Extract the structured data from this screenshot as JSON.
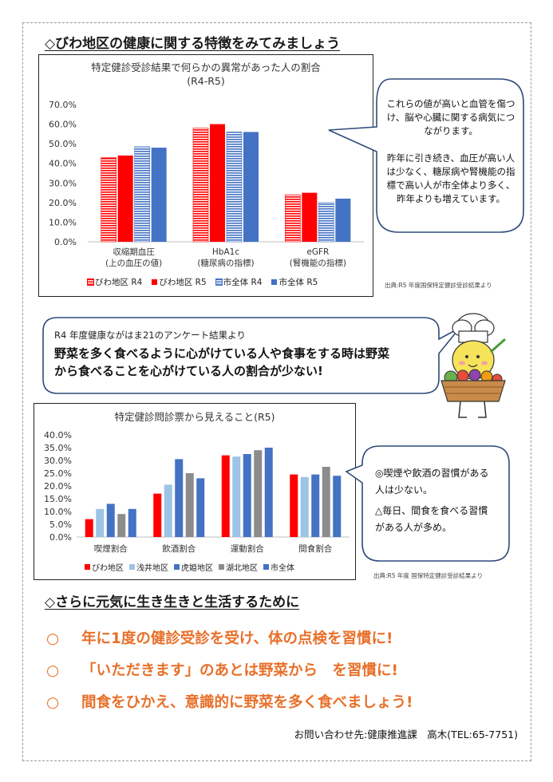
{
  "section1_title": "◇びわ地区の健康に関する特徴をみてみましょう",
  "chart1": {
    "title_line1": "特定健診受診結果で何らかの異常があった人の割合",
    "title_line2": "(R4-R5)",
    "source": "出典:R5 年度国保特定健診受診結果より"
  },
  "callout1": {
    "p1": "これらの値が高いと血管を傷つけ、脳や心臓に関する病気につながります。",
    "p2": "昨年に引き続き、血圧が高い人は少なく、糖尿病や腎機能の指標で高い人が市全体より多く、昨年よりも増えています。"
  },
  "survey": {
    "subtitle": "R4 年度健康ながはま21のアンケート結果より",
    "main": "野菜を多く食べるように心がけている人や食事をする時は野菜から食べることを心がけている人の割合が少ない!"
  },
  "chart2": {
    "title": "特定健診問診票から見えること(R5)",
    "source": "出典:R5 年度 国保特定健診受診結果より"
  },
  "callout2": {
    "line1": "◎喫煙や飲酒の習慣がある人は少ない。",
    "line2": "△毎日、間食を食べる習慣がある人が多め。"
  },
  "section2_title": "◇さらに元気に生き生きと生活するために",
  "actions": [
    {
      "mark": "○",
      "text": "年に1度の健診受診を受け、体の点検を習慣に!"
    },
    {
      "mark": "○",
      "text": "「いただきます」のあとは野菜から　を習慣に!"
    },
    {
      "mark": "○",
      "text": "間食をひかえ、意識的に野菜を多く食べましょう!"
    }
  ],
  "contact": "お問い合わせ先:健康推進課　高木(TEL:65-7751)",
  "colors": {
    "red": "#ff0000",
    "blue_light": "#9dc3e6",
    "blue": "#4472c4",
    "gray": "#8c8c8c",
    "orange": "#e8702a"
  },
  "chart_data": [
    {
      "type": "bar",
      "title": "特定健診受診結果で何らかの異常があった人の割合 (R4-R5)",
      "categories": [
        "収縮期血圧(上の血圧の値)",
        "HbA1c(糖尿病の指標)",
        "eGFR(腎機能の指標)"
      ],
      "category_lines": [
        [
          "収縮期血圧",
          "(上の血圧の値)"
        ],
        [
          "HbA1c",
          "(糖尿病の指標)"
        ],
        [
          "eGFR",
          "(腎機能の指標)"
        ]
      ],
      "yticks": [
        "0.0%",
        "10.0%",
        "20.0%",
        "30.0%",
        "40.0%",
        "50.0%",
        "60.0%",
        "70.0%"
      ],
      "ylim": [
        0,
        70
      ],
      "series": [
        {
          "name": "びわ地区 R4",
          "values": [
            43,
            58,
            24
          ],
          "color": "#ff0000",
          "pattern": "stripe"
        },
        {
          "name": "びわ地区 R5",
          "values": [
            44,
            60,
            25
          ],
          "color": "#ff0000",
          "pattern": "solid"
        },
        {
          "name": "市全体 R4",
          "values": [
            48.5,
            56,
            20
          ],
          "color": "#4472c4",
          "pattern": "stripe"
        },
        {
          "name": "市全体 R5",
          "values": [
            48,
            56,
            22
          ],
          "color": "#4472c4",
          "pattern": "solid"
        }
      ],
      "legend": "bottom"
    },
    {
      "type": "bar",
      "title": "特定健診問診票から見えること(R5)",
      "categories": [
        "喫煙割合",
        "飲酒割合",
        "運動割合",
        "間食割合"
      ],
      "yticks": [
        "0.0%",
        "5.0%",
        "10.0%",
        "15.0%",
        "20.0%",
        "25.0%",
        "30.0%",
        "35.0%",
        "40.0%"
      ],
      "ylim": [
        0,
        40
      ],
      "series": [
        {
          "name": "びわ地区",
          "values": [
            7,
            17,
            32,
            24.5
          ],
          "color": "#ff0000"
        },
        {
          "name": "浅井地区",
          "values": [
            11,
            20.5,
            31.5,
            23.5
          ],
          "color": "#9dc3e6"
        },
        {
          "name": "虎姫地区",
          "values": [
            13,
            30.5,
            32.5,
            24.5
          ],
          "color": "#4472c4"
        },
        {
          "name": "湖北地区",
          "values": [
            9,
            25,
            34,
            27.5
          ],
          "color": "#8c8c8c"
        },
        {
          "name": "市全体",
          "values": [
            11,
            23,
            35,
            24
          ],
          "color": "#4472c4"
        }
      ],
      "legend": "bottom"
    }
  ]
}
